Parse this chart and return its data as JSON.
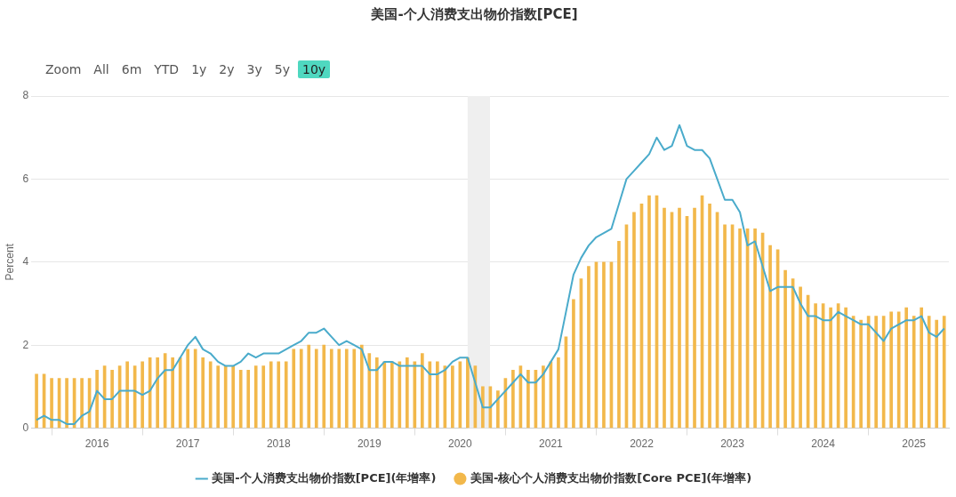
{
  "chart_data": {
    "type": "bar",
    "title": "美国-个人消费支出物价指数[PCE]",
    "ylabel": "Percent",
    "annotations": [
      "Zoom",
      "All",
      "6m",
      "YTD",
      "1y",
      "2y",
      "3y",
      "5y",
      "10y"
    ],
    "x": [
      "2015-05",
      "2015-06",
      "2015-07",
      "2015-08",
      "2015-09",
      "2015-10",
      "2015-11",
      "2015-12",
      "2016-01",
      "2016-02",
      "2016-03",
      "2016-04",
      "2016-05",
      "2016-06",
      "2016-07",
      "2016-08",
      "2016-09",
      "2016-10",
      "2016-11",
      "2016-12",
      "2017-01",
      "2017-02",
      "2017-03",
      "2017-04",
      "2017-05",
      "2017-06",
      "2017-07",
      "2017-08",
      "2017-09",
      "2017-10",
      "2017-11",
      "2017-12",
      "2018-01",
      "2018-02",
      "2018-03",
      "2018-04",
      "2018-05",
      "2018-06",
      "2018-07",
      "2018-08",
      "2018-09",
      "2018-10",
      "2018-11",
      "2018-12",
      "2019-01",
      "2019-02",
      "2019-03",
      "2019-04",
      "2019-05",
      "2019-06",
      "2019-07",
      "2019-08",
      "2019-09",
      "2019-10",
      "2019-11",
      "2019-12",
      "2020-01",
      "2020-02",
      "2020-03",
      "2020-04",
      "2020-05",
      "2020-06",
      "2020-07",
      "2020-08",
      "2020-09",
      "2020-10",
      "2020-11",
      "2020-12",
      "2021-01",
      "2021-02",
      "2021-03",
      "2021-04",
      "2021-05",
      "2021-06",
      "2021-07",
      "2021-08",
      "2021-09",
      "2021-10",
      "2021-11",
      "2021-12",
      "2022-01",
      "2022-02",
      "2022-03",
      "2022-04",
      "2022-05",
      "2022-06",
      "2022-07",
      "2022-08",
      "2022-09",
      "2022-10",
      "2022-11",
      "2022-12",
      "2023-01",
      "2023-02",
      "2023-03",
      "2023-04",
      "2023-05",
      "2023-06",
      "2023-07",
      "2023-08",
      "2023-09",
      "2023-10",
      "2023-11",
      "2023-12",
      "2024-01",
      "2024-02",
      "2024-03",
      "2024-04",
      "2024-05",
      "2024-06",
      "2024-07",
      "2024-08",
      "2024-09",
      "2024-10",
      "2024-11",
      "2024-12",
      "2025-01",
      "2025-02",
      "2025-03",
      "2025-04",
      "2025-05"
    ],
    "series": [
      {
        "name": "美国-个人消费支出物价指数[PCE](年增率)",
        "type": "line",
        "color": "#4aabcb",
        "values": [
          0.2,
          0.3,
          0.2,
          0.2,
          0.1,
          0.1,
          0.3,
          0.4,
          0.9,
          0.7,
          0.7,
          0.9,
          0.9,
          0.9,
          0.8,
          0.9,
          1.2,
          1.4,
          1.4,
          1.7,
          2.0,
          2.2,
          1.9,
          1.8,
          1.6,
          1.5,
          1.5,
          1.6,
          1.8,
          1.7,
          1.8,
          1.8,
          1.8,
          1.9,
          2.0,
          2.1,
          2.3,
          2.3,
          2.4,
          2.2,
          2.0,
          2.1,
          2.0,
          1.9,
          1.4,
          1.4,
          1.6,
          1.6,
          1.5,
          1.5,
          1.5,
          1.5,
          1.3,
          1.3,
          1.4,
          1.6,
          1.7,
          1.7,
          1.1,
          0.5,
          0.5,
          0.7,
          0.9,
          1.1,
          1.3,
          1.1,
          1.1,
          1.3,
          1.6,
          1.9,
          2.8,
          3.7,
          4.1,
          4.4,
          4.6,
          4.7,
          4.8,
          5.4,
          6.0,
          6.2,
          6.4,
          6.6,
          7.0,
          6.7,
          6.8,
          7.3,
          6.8,
          6.7,
          6.7,
          6.5,
          6.0,
          5.5,
          5.5,
          5.2,
          4.4,
          4.5,
          3.9,
          3.3,
          3.4,
          3.4,
          3.4,
          3.0,
          2.7,
          2.7,
          2.6,
          2.6,
          2.8,
          2.7,
          2.6,
          2.5,
          2.5,
          2.3,
          2.1,
          2.4,
          2.5,
          2.6,
          2.6,
          2.7,
          2.3,
          2.2,
          2.4
        ]
      },
      {
        "name": "美国-核心个人消费支出物价指数[Core PCE](年增率)",
        "color": "#f2b84b",
        "values": [
          1.3,
          1.3,
          1.2,
          1.2,
          1.2,
          1.2,
          1.2,
          1.2,
          1.4,
          1.5,
          1.4,
          1.5,
          1.6,
          1.5,
          1.6,
          1.7,
          1.7,
          1.8,
          1.7,
          1.7,
          1.9,
          1.9,
          1.7,
          1.6,
          1.5,
          1.5,
          1.5,
          1.4,
          1.4,
          1.5,
          1.5,
          1.6,
          1.6,
          1.6,
          1.9,
          1.9,
          2.0,
          1.9,
          2.0,
          1.9,
          1.9,
          1.9,
          1.9,
          2.0,
          1.8,
          1.7,
          1.6,
          1.6,
          1.6,
          1.7,
          1.6,
          1.8,
          1.6,
          1.6,
          1.5,
          1.5,
          1.6,
          1.7,
          1.5,
          1.0,
          1.0,
          0.9,
          1.2,
          1.4,
          1.5,
          1.4,
          1.4,
          1.5,
          1.6,
          1.7,
          2.2,
          3.1,
          3.6,
          3.9,
          4.0,
          4.0,
          4.0,
          4.5,
          4.9,
          5.2,
          5.4,
          5.6,
          5.6,
          5.3,
          5.2,
          5.3,
          5.1,
          5.3,
          5.6,
          5.4,
          5.2,
          4.9,
          4.9,
          4.8,
          4.8,
          4.8,
          4.7,
          4.4,
          4.3,
          3.8,
          3.6,
          3.4,
          3.2,
          3.0,
          3.0,
          2.9,
          3.0,
          2.9,
          2.7,
          2.6,
          2.7,
          2.7,
          2.7,
          2.8,
          2.8,
          2.9,
          2.7,
          2.9,
          2.7,
          2.6,
          2.7
        ]
      }
    ],
    "xlim": [
      "2015-04-10",
      "2025-05-20"
    ],
    "xticks": [
      "2016",
      "2017",
      "2018",
      "2019",
      "2020",
      "2021",
      "2022",
      "2023",
      "2024",
      "2025"
    ],
    "ylim": [
      0,
      8
    ],
    "yticks": [
      0,
      2,
      4,
      6,
      8
    ],
    "bands": [
      {
        "axis": "x",
        "from": "2020-02-01",
        "to": "2020-04-30",
        "color": "#efefef"
      }
    ],
    "grid": "y",
    "legend": "bottom"
  }
}
